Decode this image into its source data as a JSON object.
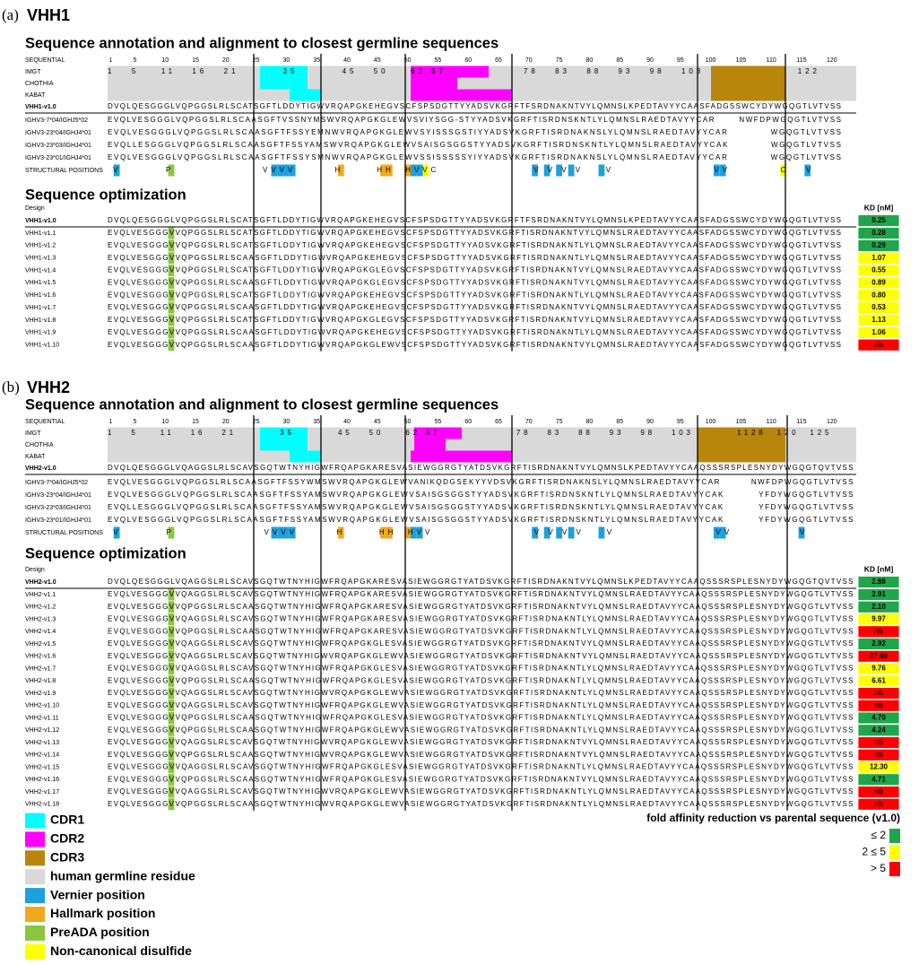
{
  "panels": [
    {
      "label": "(a)",
      "name": "VHH1",
      "annotation_title": "Sequence annotation and alignment to closest germline sequences",
      "numbering": {
        "row_labels": [
          "SEQUENTIAL",
          "IMGT",
          "CHOTHIA",
          "KABAT"
        ],
        "sequential": [
          1,
          5,
          10,
          15,
          20,
          25,
          30,
          35,
          40,
          45,
          50,
          55,
          60,
          65,
          70,
          75,
          80,
          85,
          90,
          95,
          100,
          105,
          110,
          115,
          120
        ],
        "imgt": "1   5    11   16   21        35        45   50    62 67              78   83   88   93   98   103                 122"
      },
      "reference": {
        "name": "VHH1-v1.0",
        "sequence": "DVQLQESGGGLVQPGGSLRLSCATSGFTLDDYTIGWVRQAPGKEHEGVSCFSPSDGTTYYADSVKGRFTFSRDNAKNTVYLQMNSLKPEDTAVYYCAASFADGSSWCYDYWGQGTLVTVSS"
      },
      "germlines": [
        {
          "name": "IGHV3-7*04/IGHJ5*02",
          "sequence": "EVQLVESGGGLVQPGGSLRLSCAASGFTVSSNYMSWVRQAPGKGLEWVSVIYSGG-STYYADSVKGRFTISRDNSKNTLYLQMNSLRAEDTAVYYCAR       NWFDPWGQGTLVTVSS"
        },
        {
          "name": "IGHV3-23*04/IGHJ4*01",
          "sequence": "EVQLVESGGGLVQPGGSLRLSCAASGFTFSSYEMNWVRQAPGKGLEWVSYISSSGSTIYYADSVKGRFTISRDNAKNSLYLQMNSLRAEDTAVYYCAR            WGQGTLVTVSS"
        },
        {
          "name": "IGHV3-23*03/IGHJ4*01",
          "sequence": "EVQLLESGGGLVQPGGSLRLSCAASGFTFSSYAMSWVRQAPGKGLEWVSAISGSGGSTYYADSVKGRFTISRDNSKNTLYLQMNSLRAEDTAVYYCAK            WGQGTLVTVSS"
        },
        {
          "name": "IGHV3-23*01/IGHJ4*01",
          "sequence": "EVQLVESGGGLVQPGGSLRLSCAASGFTFSSYSMNWVRQAPGKGLEWVSSISSSSSYIYYADSVKGRFTISRDNAKNSLYLQMNSLRAEDTAVYYCAR            WGQGTLVTVSS"
        }
      ],
      "structural": {
        "label": "STRUCTURAL POSITIONS",
        "marks": " V        P                VVVV       H      HH  HVVC                 V V V V    V                  VV         C   V"
      },
      "optimization": {
        "title": "Sequence optimization",
        "design_label": "Design",
        "kd_header": "KD [nM]",
        "parent": {
          "name": "VHH1-v1.0",
          "sequence": "DVQLQESGGGLVQPGGSLRLSCATSGFTLDDYTIGWVRQAPGKEHEGVSCFSPSDGTTYYADSVKGRFTFSRDNAKNTVYLQMNSLKPEDTAVYYCAASFADGSSWCYDYWGQGTLVTVSS",
          "kd": "0.25",
          "kd_color": "#1fa64a"
        },
        "variants": [
          {
            "name": "VHH1-v1.1",
            "sequence": "EVQLVESGGGVVQPGGSLRLSCATSGFTLDDYTIGWVRQAPGKEHEGVSCFSPSDGTTYYADSVKGRFTISRDNAKNTVYLQMNSLRAEDTAVYYCAASFADGSSWCYDYWGQGTLVTVSS",
            "kd": "0.28",
            "kd_color": "#1fa64a"
          },
          {
            "name": "VHH1-v1.2",
            "sequence": "EVQLVESGGGVVQPGGSLRLSCATSGFTLDDYTIGWVRQAPGKEHEGVSCFSPSDGTTYYADSVKGRFTISRDNAKNTLYLQMNSLRAEDTAVYYCAASFADGSSWCYDYWGQGTLVTVSS",
            "kd": "0.29",
            "kd_color": "#1fa64a"
          },
          {
            "name": "VHH1-v1.3",
            "sequence": "EVQLVESGGGVVQPGGSLRLSCAASGFTLDDYTIGWVRQAPGKEHEGVSCFSPSDGTTYYADSVKGRFTISRDNAKNTLYLQMNSLRAEDTAVYYCAASFADGSSWCYDYWGQGTLVTVSS",
            "kd": "1.07",
            "kd_color": "#ffff00"
          },
          {
            "name": "VHH1-v1.4",
            "sequence": "EVQLVESGGGVVQPGGSLRLSCATSGFTLDDYTIGWVRQAPGKGLEGVSCFSPSDGTTYYADSVKGRFTISRDNAKNTVYLQMNSLRAEDTAVYYCAASFADGSSWCYDYWGQGTLVTVSS",
            "kd": "0.55",
            "kd_color": "#ffff00"
          },
          {
            "name": "VHH1-v1.5",
            "sequence": "EVQLVESGGGVVQPGGSLRLSCAASGFTLDDYTIGWVRQAPGKGLEGVSCFSPSDGTTYYADSVKGRFTISRDNAKNTVYLQMNSLRAEDTAVYYCAASFADGSSWCYDYWGQGTLVTVSS",
            "kd": "0.89",
            "kd_color": "#ffff00"
          },
          {
            "name": "VHH1-v1.6",
            "sequence": "EVQLVESGGGVVQPGGSLRLSCATSGFTLDDYTIGWVRQAPGKEHEGVSCFSPSDGTTYYADSVKGRFTISRDNAKNTLYLQMNSLRAEDTAVYYCAASFADGSSWCYDYWGQGTLVTVSS",
            "kd": "0.80",
            "kd_color": "#ffff00"
          },
          {
            "name": "VHH1-v1.7",
            "sequence": "EVQLVESGGGVVQPGGSLRLSCAASGFTLDDYTIGWVRQAPGKEHEGVSCFSPSDGTTYYADSVKGRFTISRDNAKNTVYLQMNSLRAEDTAVYYCAASFADGSSWCYDYWGQGTLVTVSS",
            "kd": "0.53",
            "kd_color": "#ffff00"
          },
          {
            "name": "VHH1-v1.8",
            "sequence": "EVQLVESGGGVVQPGGSLRLSCATSGFTLDDYTIGWVRQAPGKGLEGVSCFSPSDGTTYYADSVKGRFTISRDNAKNTVYLQMNSLRAEDTAVYYCAASFADGSSWCYDYWGQGTLVTVSS",
            "kd": "1.13",
            "kd_color": "#ffff00"
          },
          {
            "name": "VHH1-v1.9",
            "sequence": "EVQLVESGGGVVQPGGSLRLSCAASGFTLDDYTIGWVRQAPGKEHEGVSCFSPSDGTTYYADSVKGRFTISRDNAKNTLYLQMNSLRAEDTAVYYCAASFADGSSWCYDYWGQGTLVTVSS",
            "kd": "1.06",
            "kd_color": "#ffff00"
          },
          {
            "name": "VHH1-v1.10",
            "sequence": "EVQLVESGGGVVQPGGSLRLSCAASGFTLDDYTIGWVRQAPGKGLEWVSCFSPSDGTTYYADSVKGRFTISRDNAKNTVYLQMNSLRAEDTAVYYCAASFADGSSWCYDYWGQGTLVTVSS",
            "kd": "nb",
            "kd_color": "#ff0000"
          }
        ]
      }
    },
    {
      "label": "(b)",
      "name": "VHH2",
      "annotation_title": "Sequence annotation and alignment to closest germline sequences",
      "numbering": {
        "row_labels": [
          "SEQUENTIAL",
          "IMGT",
          "CHOTHIA",
          "KABAT"
        ],
        "sequential": [
          1,
          5,
          10,
          15,
          20,
          25,
          30,
          35,
          40,
          45,
          50,
          55,
          60,
          65,
          70,
          75,
          80,
          85,
          90,
          95,
          100,
          105,
          110,
          115,
          120
        ],
        "imgt": "1   5    11   16   21        35        45   50    62 67              78   83   88   93   98   103        1128  120  125"
      },
      "reference": {
        "name": "VHH2-v1.0",
        "sequence": "DVQLQESGGGLVQAGGSLRLSCAVSGQTWTNYHIGWFRQAPGKARESVASIEWGGRGTYATDSVKGRFTISRDNAKNTVYLQMNSLKPEDTAVYYCAAQSSSRSPLESNYDYWGQGTQVTVSS"
      },
      "germlines": [
        {
          "name": "IGHV3-7*04/IGHJ5*02",
          "sequence": "EVQLVESGGGLVQPGGSLRLSCAASGFTFSSYWMSWVRQAPGKGLEWVANIKQDGSEKYYVDSVKGRFTISRDNAKNSLYLQMNSLRAEDTAVYYCAR         NWFDPWGQGTLVTVSS"
        },
        {
          "name": "IGHV3-23*04/IGHJ4*01",
          "sequence": "EVQLVESGGGLVQPGGSLRLSCAASGFTFSSYAMSWVRQAPGKGLEWVSAISGSGGSTYYADSVKGRFTISRDNSKNTLYLQMNSLRAEDTAVYYCAK          YFDYWGQGTLVTVSS"
        },
        {
          "name": "IGHV3-23*03/IGHJ4*01",
          "sequence": "EVQLLESGGGLVQPGGSLRLSCAASGFTFSSYAMSWVRQAPGKGLEWVSAISGSGGSTYYADSVKGRFTISRDNSKNTLYLQMNSLRAEDTAVYYCAK          YFDYWGQGTLVTVSS"
        },
        {
          "name": "IGHV3-23*01/IGHJ4*01",
          "sequence": "EVQLVESGGGLVQPGGSLRLSCAASGFTFSSYAMSWVRQAPGKGLEWVSAISGSGGSTYYADSVKGRFTISRDNSKNTLYLQMNSLRAEDTAVYYCAK          YFDYWGQGTLVTVSS"
        }
      ],
      "structural": {
        "label": "STRUCTURAL POSITIONS",
        "marks": " V        P                VVVV       H      HH  HVV                  V V V V    V                  VV            V"
      },
      "optimization": {
        "title": "Sequence optimization",
        "design_label": "Design",
        "kd_header": "KD [nM]",
        "parent": {
          "name": "VHH2-v1.0",
          "sequence": "DVQLQESGGGLVQAGGSLRLSCAVSGQTWTNYHIGWFRQAPGKARESVASIEWGGRGTYATDSVKGRFTISRDNAKNTVYLQMNSLKPEDTAVYYCAAQSSSRSPLESNYDYWGQGTQVTVSS",
          "kd": "2.88",
          "kd_color": "#1fa64a"
        },
        "variants": [
          {
            "name": "VHH2-v1.1",
            "sequence": "EVQLVESGGGVVQAGGSLRLSCAVSGQTWTNYHIGWFRQAPGKARESVASIEWGGRGTYATDSVKGRFTISRDNAKNTVYLQMNSLRAEDTAVYYCAAQSSSRSPLESNYDYWGQGTLVTVSS",
            "kd": "2.91",
            "kd_color": "#1fa64a"
          },
          {
            "name": "VHH2-v1.2",
            "sequence": "EVQLVESGGGVVQPGGSLRLSCAASGQTWTNYHIGWFRQAPGKARESVASIEWGGRGTYATDSVKGRFTISRDNAKNTVYLQMNSLRAEDTAVYYCAAQSSSRSPLESNYDYWGQGTLVTVSS",
            "kd": "2.10",
            "kd_color": "#1fa64a"
          },
          {
            "name": "VHH2-v1.3",
            "sequence": "EVQLVESGGGVVQAGGSLRLSCAVSGQTWTNYHIGWFRQAPGKARESVASIEWGGRGTYATDSVKGRFTISRDNAKNTLYLQMNSLRAEDTAVYYCAAQSSSRSPLESNYDYWGQGTLVTVSS",
            "kd": "9.97",
            "kd_color": "#ffff00"
          },
          {
            "name": "VHH2-v1.4",
            "sequence": "EVQLVESGGGVVQPGGSLRLSCAASGQTWTNYHIGWFRQAPGKARESVASIEWGGRGTYATDSVKGRFTISRDNAKNTLYLQMNSLRAEDTAVYYCAAQSSSRSPLESNYDYWGQGTLVTVSS",
            "kd": "nb",
            "kd_color": "#ff0000"
          },
          {
            "name": "VHH2-v1.5",
            "sequence": "EVQLVESGGGVVQAGGSLRLSCAVSGQTWTNYHIGWFRQAPGKGLESVASIEWGGRGTYATDSVKGRFTISRDNAKNTVYLQMNSLRAEDTAVYYCAAQSSSRSPLESNYDYWGQGTLVTVSS",
            "kd": "2.92",
            "kd_color": "#1fa64a"
          },
          {
            "name": "VHH2-v1.6",
            "sequence": "EVQLVESGGGVVQAGGSLRLSCAVSGQTWTNYHIGWVRQAPGKGLEWVASIEWGGRGTYATDSVKGRFTISRDNAKNTVYLQMNSLRAEDTAVYYCAAQSSSRSPLESNYDYWGQGTLVTVSS",
            "kd": "27.60",
            "kd_color": "#ff0000"
          },
          {
            "name": "VHH2-v1.7",
            "sequence": "EVQLVESGGGVVQAGGSLRLSCAVSGQTWTNYHIGWFRQAPGKGLESVASIEWGGRGTYATDSVKGRFTISRDNAKNTLYLQMNSLRAEDTAVYYCAAQSSSRSPLESNYDYWGQGTLVTVSS",
            "kd": "9.76",
            "kd_color": "#ffff00"
          },
          {
            "name": "VHH2-v1.8",
            "sequence": "EVQLVESGGGVVQPGGSLRLSCAASGQTWTNYHIGWFRQAPGKGLESVASIEWGGRGTYATDSVKGRFTISRDNAKNTLYLQMNSLRAEDTAVYYCAAQSSSRSPLESNYDYWGQGTLVTVSS",
            "kd": "6.61",
            "kd_color": "#ffff00"
          },
          {
            "name": "VHH2-v1.9",
            "sequence": "EVQLVESGGGVVQAGGSLRLSCAVSGQTWTNYHIGWVRQAPGKGLEWVASIEWGGRGTYATDSVKGRFTISRDNAKNTLYLQMNSLRAEDTAVYYCAAQSSSRSPLESNYDYWGQGTLVTVSS",
            "kd": "nb",
            "kd_color": "#ff0000"
          },
          {
            "name": "VHH2-v1.10",
            "sequence": "EVQLVESGGGVVQAGGSLRLSCAVSGQTWTNYHIGWFRQAPGKGLEWVASIEWGGRGTYATDSVKGRFTISRDNAKNTLYLQMNSLRAEDTAVYYCAAQSSSRSPLESNYDYWGQGTLVTVSS",
            "kd": "nb",
            "kd_color": "#ff0000"
          },
          {
            "name": "VHH2-v1.11",
            "sequence": "EVQLVESGGGVVQPGGSLRLSCAASGQTWTNYHIGWFRQAPGKGLESVASIEWGGRGTYATDSVKGRFTISRDNAKNTLYLQMNSLRAEDTAVYYCAAQSSSRSPLESNYDYWGQGTLVTVSS",
            "kd": "4.70",
            "kd_color": "#1fa64a"
          },
          {
            "name": "VHH2-v1.12",
            "sequence": "EVQLVESGGGVVQPGGSLRLSCAASGQTWTNYHIGWFRQAPGKGLEWVASIEWGGRGTYATDSVKGRFTISRDNAKNTLYLQMNSLRAEDTAVYYCAAQSSSRSPLESNYDYWGQGTLVTVSS",
            "kd": "4.24",
            "kd_color": "#1fa64a"
          },
          {
            "name": "VHH2-v1.13",
            "sequence": "EVQLVESGGGVVQAGGSLRLSCAVSGQTWTNYHIGWVRQAPGKGLEWVASIEWGGRGTYATDSVKGRFTISRDNAKNTVYLQMNSLRAEDTAVYYCAAQSSSRSPLESNYDYWGQGTLVTVSS",
            "kd": "nb",
            "kd_color": "#ff0000"
          },
          {
            "name": "VHH2-v1.14",
            "sequence": "EVQLVESGGGVVQPGGSLRLSCAASGQTWTNYHIGWVRQAPGKGLEWVASIEWGGRGTYATDSVKGRFTISRDNAKNTVYLQMNSLRAEDTAVYYCAAQSSSRSPLESNYDYWGQGTLVTVSS",
            "kd": "nb",
            "kd_color": "#ff0000"
          },
          {
            "name": "VHH2-v1.15",
            "sequence": "EVQLVESGGGVVQAGGSLRLSCAVSGQTWTNYHIGWFRQAPGKGLESVASIEWGGRGTYATDSVKGRFTISRDNAKNTLYLQMNSLRAEDTAVYYCAAQSSSRSPLESNYDYWGQGTLVTVSS",
            "kd": "12.30",
            "kd_color": "#ffff00"
          },
          {
            "name": "VHH2-v1.16",
            "sequence": "EVQLVESGGGVVQPGGSLRLSCAASGQTWTNYHIGWFRQAPGKGLESVASIEWGGRGTYATDSVKGRFTISRDNAKNTVYLQMNSLRAEDTAVYYCAAQSSSRSPLESNYDYWGQGTLVTVSS",
            "kd": "4.71",
            "kd_color": "#1fa64a"
          },
          {
            "name": "VHH2-v1.17",
            "sequence": "EVQLVESGGGVVQAGGSLRLSCAVSGQTWTNYHIGWVRQAPGKGLEWVASIEWGGRGTYATDSVKGRFTISRDNAKNTLYLQMNSLRAEDTAVYYCAAQSSSRSPLESNYDYWGQGTLVTVSS",
            "kd": "nb",
            "kd_color": "#ff0000"
          },
          {
            "name": "VHH2-v1.18",
            "sequence": "EVQLVESGGGVVQPGGSLRLSCAASGQTWTNYHIGWVRQAPGKGLEWVASIEWGGRGTYATDSVKGRFTISRDNAKNTLYLQMNSLRAEDTAVYYCAAQSSSRSPLESNYDYWGQGTLVTVSS",
            "kd": "nb",
            "kd_color": "#ff0000"
          }
        ]
      }
    }
  ],
  "legend": [
    {
      "label": "CDR1",
      "color": "#00ffff"
    },
    {
      "label": "CDR2",
      "color": "#ff00ff"
    },
    {
      "label": "CDR3",
      "color": "#b8860b"
    },
    {
      "label": "human germline residue",
      "color": "#d9d9d9"
    },
    {
      "label": "Vernier position",
      "color": "#1ea0dc"
    },
    {
      "label": "Hallmark position",
      "color": "#f2a81d"
    },
    {
      "label": "PreADA position",
      "color": "#8cc63f"
    },
    {
      "label": "Non-canonical disulfide",
      "color": "#ffff00"
    }
  ],
  "affinity_legend": {
    "title": "fold affinity reduction vs parental sequence (v1.0)",
    "items": [
      {
        "label": "≤ 2",
        "color": "#1fa64a"
      },
      {
        "label": "2 ≤ 5",
        "color": "#ffff00"
      },
      {
        "label": "> 5",
        "color": "#ff0000"
      }
    ]
  }
}
